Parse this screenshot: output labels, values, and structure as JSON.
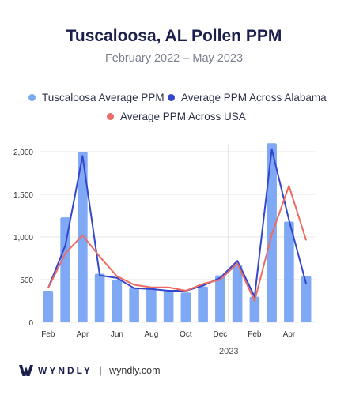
{
  "header": {
    "title": "Tuscaloosa, AL Pollen PPM",
    "subtitle": "February 2022 – May 2023"
  },
  "legend": [
    {
      "label": "Tuscaloosa Average PPM",
      "color": "#7fa8f5"
    },
    {
      "label": "Average PPM Across Alabama",
      "color": "#3346cc"
    },
    {
      "label": "Average PPM Across USA",
      "color": "#ec6b62"
    }
  ],
  "footer": {
    "brand": "WYNDLY",
    "separator": "|",
    "site": "wyndly.com"
  },
  "chart_data": {
    "type": "bar",
    "categories": [
      "Feb 2022",
      "Mar 2022",
      "Apr 2022",
      "May 2022",
      "Jun 2022",
      "Jul 2022",
      "Aug 2022",
      "Sep 2022",
      "Oct 2022",
      "Nov 2022",
      "Dec 2022",
      "Jan 2023",
      "Feb 2023",
      "Mar 2023",
      "Apr 2023",
      "May 2023"
    ],
    "x_tick_labels": [
      "Feb",
      "Apr",
      "Jun",
      "Aug",
      "Oct",
      "Dec",
      "Feb",
      "Apr"
    ],
    "x_tick_indices": [
      0,
      2,
      4,
      6,
      8,
      10,
      12,
      14
    ],
    "year_marker": {
      "label": "2023",
      "index": 11
    },
    "ylim": [
      0,
      2100
    ],
    "y_ticks": [
      0,
      500,
      1000,
      1500,
      2000
    ],
    "y_tick_labels": [
      "0",
      "500",
      "1,000",
      "1,500",
      "2,000"
    ],
    "series": [
      {
        "name": "Tuscaloosa Average PPM",
        "kind": "bar",
        "color": "#7fa8f5",
        "values": [
          370,
          1230,
          2000,
          570,
          500,
          400,
          400,
          370,
          350,
          420,
          550,
          670,
          300,
          2100,
          1180,
          540
        ]
      },
      {
        "name": "Average PPM Across Alabama",
        "kind": "line",
        "color": "#3346cc",
        "values": [
          400,
          900,
          1950,
          550,
          520,
          400,
          390,
          370,
          370,
          430,
          520,
          720,
          300,
          2030,
          1200,
          450
        ]
      },
      {
        "name": "Average PPM Across USA",
        "kind": "line",
        "color": "#ec6b62",
        "values": [
          400,
          810,
          1020,
          770,
          540,
          440,
          410,
          410,
          370,
          450,
          500,
          690,
          250,
          1030,
          1600,
          960
        ]
      }
    ]
  }
}
